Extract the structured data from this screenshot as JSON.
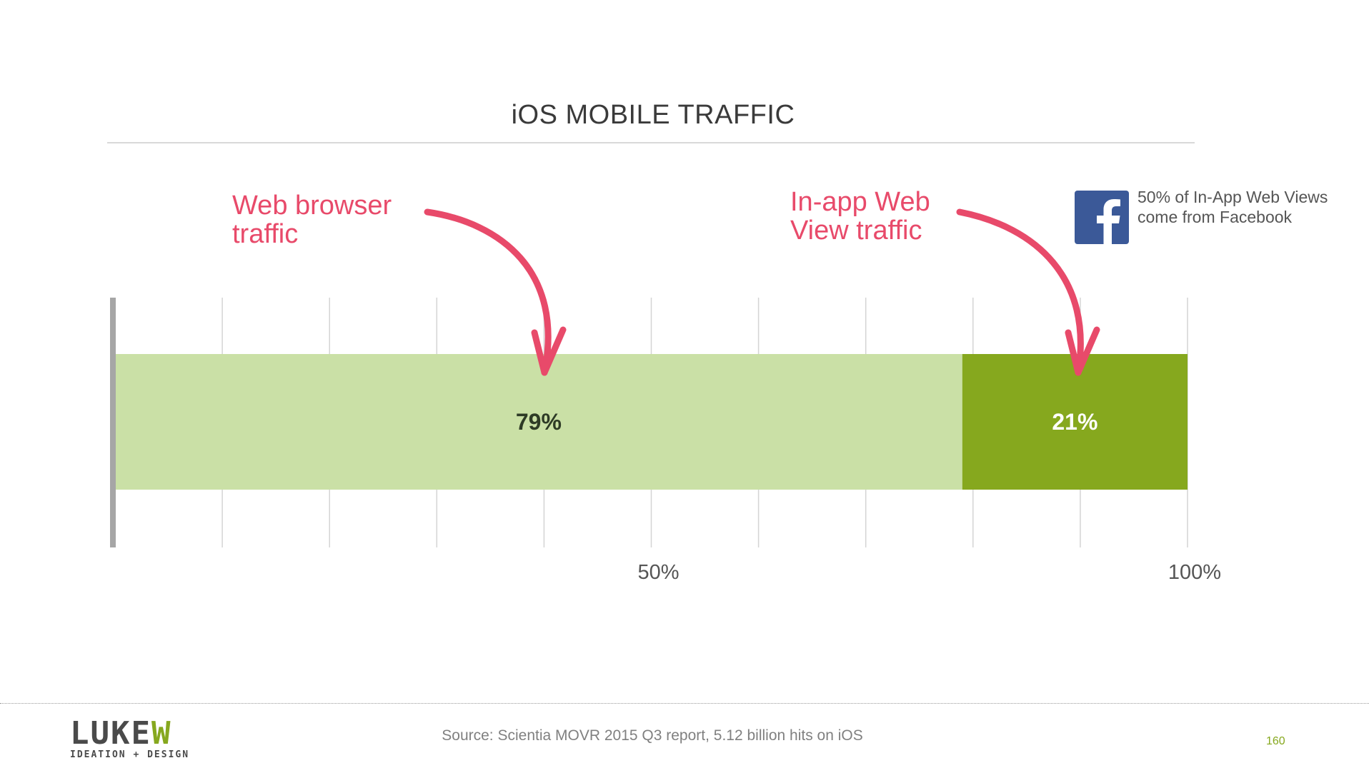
{
  "chart_data": {
    "type": "bar",
    "orientation": "horizontal-stacked",
    "title": "iOS MOBILE TRAFFIC",
    "series": [
      {
        "name": "Web browser traffic",
        "value": 79,
        "label": "79%",
        "color": "#cae0a6"
      },
      {
        "name": "In-app Web View traffic",
        "value": 21,
        "label": "21%",
        "color": "#86a81e"
      }
    ],
    "xlim": [
      0,
      100
    ],
    "gridlines": [
      10,
      20,
      30,
      40,
      50,
      60,
      70,
      80,
      90,
      100
    ],
    "tick_labels": [
      {
        "value": 50,
        "label": "50%"
      },
      {
        "value": 100,
        "label": "100%"
      }
    ],
    "grid": true
  },
  "annotations": {
    "web_browser": "Web browser\ntraffic",
    "in_app": "In-app Web\nView traffic",
    "color": "#e84a6a"
  },
  "facebook_note": {
    "text": "50% of In-App Web Views come from Facebook",
    "icon": "facebook-icon",
    "icon_color": "#3b5998"
  },
  "footer": {
    "logo_word_main": "LUKE",
    "logo_word_accent": "W",
    "logo_tagline": "IDEATION + DESIGN",
    "source": "Source: Scientia MOVR 2015 Q3 report, 5.12 billion hits on iOS",
    "page_number": "160"
  }
}
